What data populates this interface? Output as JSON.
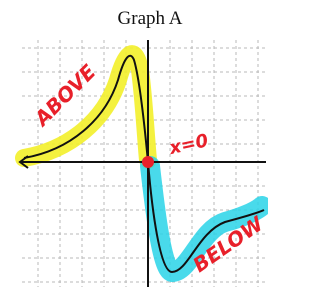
{
  "title": "Graph A",
  "annotations": {
    "above": "ABOVE",
    "origin": "x=0",
    "below": "BELOW"
  }
}
